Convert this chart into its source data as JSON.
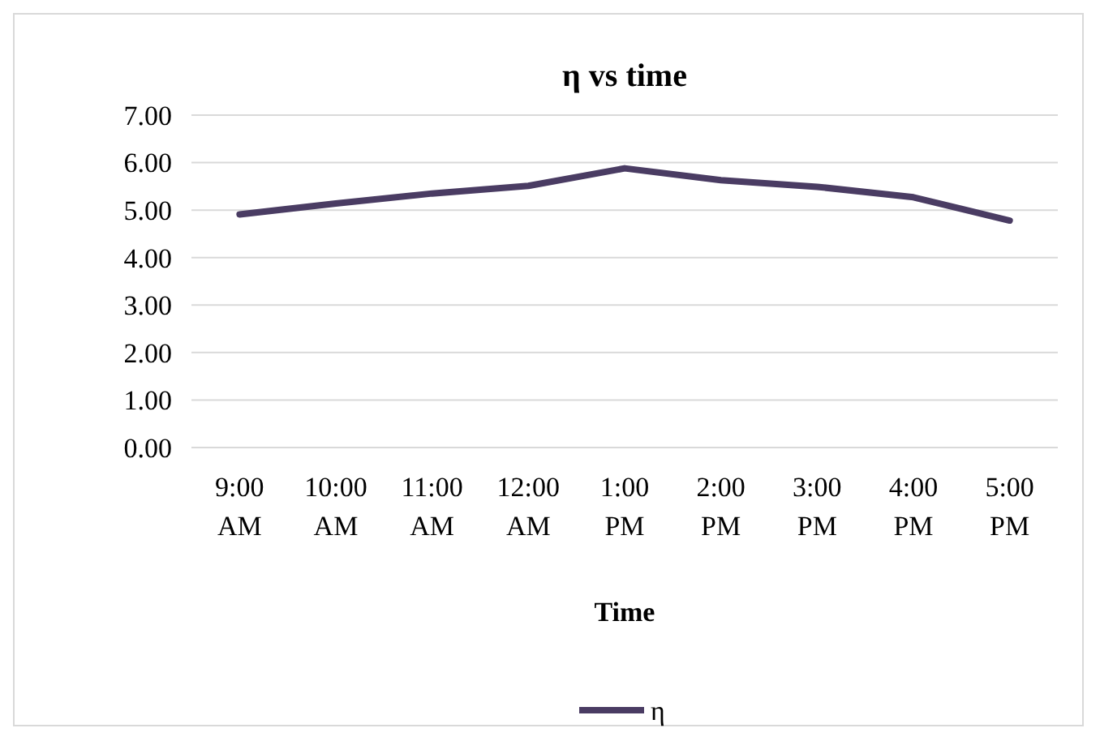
{
  "chart_data": {
    "type": "line",
    "title": "η vs time",
    "xlabel": "Time",
    "categories": [
      "9:00 AM",
      "10:00 AM",
      "11:00 AM",
      "12:00 AM",
      "1:00 PM",
      "2:00 PM",
      "3:00 PM",
      "4:00 PM",
      "5:00 PM"
    ],
    "series": [
      {
        "name": "η",
        "color": "#4a3c63",
        "values": [
          4.91,
          5.14,
          5.35,
          5.51,
          5.88,
          5.63,
          5.49,
          5.27,
          4.78
        ]
      }
    ],
    "ylim": [
      0,
      7
    ],
    "yticks": [
      {
        "value": 0,
        "label": "0.00"
      },
      {
        "value": 1,
        "label": "1.00"
      },
      {
        "value": 2,
        "label": "2.00"
      },
      {
        "value": 3,
        "label": "3.00"
      },
      {
        "value": 4,
        "label": "4.00"
      },
      {
        "value": 5,
        "label": "5.00"
      },
      {
        "value": 6,
        "label": "6.00"
      },
      {
        "value": 7,
        "label": "7.00"
      }
    ],
    "grid": "y",
    "legend": "bottom",
    "marker": "none",
    "line_style": "solid"
  }
}
